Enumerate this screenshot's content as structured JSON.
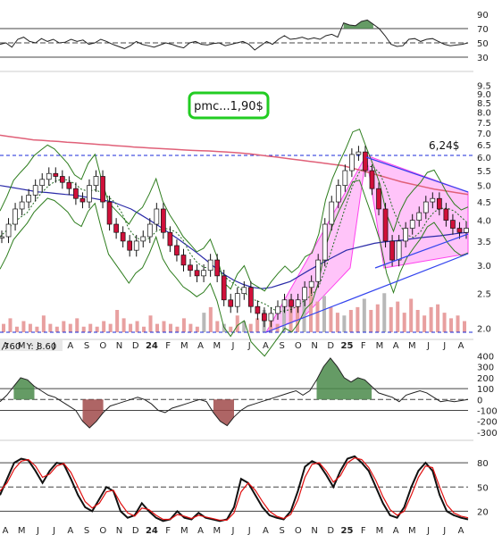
{
  "colors": {
    "up": "#ffffff",
    "down": "#d0103a",
    "wick": "#111111",
    "ma_red": "#e06078",
    "ma_blue": "#2a2aa8",
    "bollinger": "#2e7d1e",
    "ma_dotted": "#1f6b1f",
    "volume": "#e8a0a0",
    "volume_up": "#b8b8b8",
    "pink": "#ff55ee",
    "trend_blue": "#3344ee",
    "dashed_blue": "#1a2ad8",
    "osc_fill_pos": "#4a8a4a",
    "osc_fill_neg": "#a04a4a",
    "label_box_border": "#22cc22"
  },
  "annotation_box": {
    "text": "pmc...1,90$"
  },
  "resistance_label": {
    "text": "6,24$"
  },
  "cursor_readout": {
    "text": ",760  Y: 8.60"
  },
  "x_axis_labels": [
    {
      "text": "A",
      "bold": false
    },
    {
      "text": "M",
      "bold": false
    },
    {
      "text": "J",
      "bold": false
    },
    {
      "text": "J",
      "bold": false
    },
    {
      "text": "A",
      "bold": false
    },
    {
      "text": "S",
      "bold": false
    },
    {
      "text": "O",
      "bold": false
    },
    {
      "text": "N",
      "bold": false
    },
    {
      "text": "D",
      "bold": false
    },
    {
      "text": "24",
      "bold": true
    },
    {
      "text": "F",
      "bold": false
    },
    {
      "text": "M",
      "bold": false
    },
    {
      "text": "A",
      "bold": false
    },
    {
      "text": "M",
      "bold": false
    },
    {
      "text": "J",
      "bold": false
    },
    {
      "text": "J",
      "bold": false
    },
    {
      "text": "A",
      "bold": false
    },
    {
      "text": "S",
      "bold": false
    },
    {
      "text": "O",
      "bold": false
    },
    {
      "text": "N",
      "bold": false
    },
    {
      "text": "D",
      "bold": false
    },
    {
      "text": "25",
      "bold": true
    },
    {
      "text": "F",
      "bold": false
    },
    {
      "text": "M",
      "bold": false
    },
    {
      "text": "A",
      "bold": false
    },
    {
      "text": "M",
      "bold": false
    },
    {
      "text": "J",
      "bold": false
    },
    {
      "text": "J",
      "bold": false
    },
    {
      "text": "A",
      "bold": false
    }
  ],
  "chart_data": [
    {
      "type": "line",
      "panel": "rsi",
      "y_ticks": [
        "90",
        "70",
        "50",
        "30"
      ],
      "ylim": [
        10,
        100
      ],
      "reference_lines": [
        70,
        50,
        30
      ],
      "series": [
        {
          "values": [
            48,
            50,
            44,
            55,
            58,
            52,
            50,
            56,
            52,
            55,
            50,
            51,
            55,
            52,
            54,
            48,
            50,
            55,
            52,
            48,
            45,
            42,
            46,
            52,
            48,
            46,
            44,
            47,
            50,
            48,
            45,
            43,
            50,
            52,
            48,
            47,
            49,
            50,
            46,
            48,
            50,
            52,
            48,
            40,
            46,
            52,
            48,
            55,
            60,
            55,
            56,
            58,
            55,
            57,
            55,
            60,
            62,
            58,
            78,
            75,
            74,
            80,
            82,
            76,
            70,
            60,
            48,
            45,
            46,
            55,
            56,
            52,
            55,
            56,
            52,
            48,
            46,
            47,
            48,
            50
          ]
        }
      ]
    },
    {
      "type": "line",
      "panel": "price",
      "y_ticks": [
        "9.5",
        "9.0",
        "8.5",
        "8.0",
        "7.5",
        "7.0",
        "6.5",
        "6.0",
        "5.5",
        "5.0",
        "4.5",
        "4.0",
        "3.5",
        "3.0",
        "2.5",
        "2.0"
      ],
      "ylim": [
        1.95,
        9.7
      ],
      "reference_lines": [
        6.24,
        2.0
      ],
      "series": [
        {
          "values": [
            3.6,
            3.9,
            4.3,
            4.5,
            4.7,
            5.0,
            5.2,
            5.4,
            5.3,
            5.1,
            4.9,
            4.6,
            4.5,
            5.0,
            5.3,
            4.5,
            3.9,
            3.7,
            3.5,
            3.3,
            3.5,
            3.6,
            3.9,
            4.3,
            3.7,
            3.4,
            3.2,
            3.0,
            2.9,
            2.8,
            2.9,
            3.1,
            2.8,
            2.4,
            2.3,
            2.5,
            2.6,
            2.3,
            2.2,
            2.1,
            2.2,
            2.3,
            2.4,
            2.3,
            2.4,
            2.6,
            2.7,
            3.1,
            3.9,
            4.5,
            5.0,
            5.5,
            6.1,
            6.2,
            5.5,
            4.9,
            4.3,
            3.5,
            3.1,
            3.5,
            3.8,
            4.0,
            4.2,
            4.5,
            4.6,
            4.3,
            4.0,
            3.8,
            3.7,
            3.8
          ]
        },
        {
          "values": [
            6.9,
            6.85,
            6.8,
            6.75,
            6.7,
            6.68,
            6.65,
            6.63,
            6.6,
            6.58,
            6.55,
            6.53,
            6.5,
            6.48,
            6.45,
            6.43,
            6.4,
            6.38,
            6.36,
            6.34,
            6.32,
            6.3,
            6.28,
            6.26,
            6.25,
            6.24,
            6.22,
            6.2,
            6.18,
            6.15,
            6.12,
            6.08,
            6.04,
            6.0,
            5.96,
            5.92,
            5.88,
            5.84,
            5.8,
            5.76,
            5.72,
            5.68,
            5.6,
            5.52,
            5.44,
            5.36,
            5.28,
            5.2,
            5.12,
            5.06,
            5.0,
            4.94,
            4.88,
            4.84,
            4.8,
            4.76,
            4.72
          ]
        },
        {
          "values": [
            5.0,
            4.95,
            4.9,
            4.85,
            4.8,
            4.78,
            4.75,
            4.72,
            4.7,
            4.65,
            4.6,
            4.55,
            4.5,
            4.4,
            4.3,
            4.15,
            4.0,
            3.85,
            3.7,
            3.55,
            3.4,
            3.25,
            3.1,
            2.95,
            2.82,
            2.72,
            2.65,
            2.6,
            2.58,
            2.6,
            2.65,
            2.7,
            2.8,
            2.9,
            3.0,
            3.1,
            3.2,
            3.3,
            3.35,
            3.4,
            3.45,
            3.48,
            3.5,
            3.52,
            3.55,
            3.58,
            3.6,
            3.62,
            3.65,
            3.68,
            3.7
          ]
        }
      ]
    },
    {
      "type": "bar",
      "panel": "volume",
      "values": [
        3,
        5,
        2,
        4,
        3,
        2,
        6,
        3,
        2,
        4,
        3,
        5,
        2,
        3,
        2,
        4,
        3,
        8,
        5,
        3,
        4,
        2,
        6,
        3,
        4,
        3,
        2,
        5,
        3,
        2,
        7,
        9,
        4,
        3,
        2,
        6,
        4,
        3,
        5,
        8,
        4,
        3,
        9,
        12,
        10,
        14,
        16,
        11,
        13,
        9,
        7,
        6,
        8,
        9,
        12,
        8,
        10,
        14,
        9,
        11,
        7,
        12,
        8,
        6,
        9,
        10,
        7,
        5,
        6,
        4
      ]
    },
    {
      "type": "area",
      "panel": "oscillator",
      "y_ticks": [
        "400",
        "300",
        "200",
        "100",
        "0",
        "-100",
        "-200",
        "-300"
      ],
      "ylim": [
        -350,
        420
      ],
      "reference_lines": [
        100,
        0,
        -100
      ],
      "series": [
        {
          "values": [
            -20,
            40,
            120,
            200,
            180,
            120,
            80,
            40,
            20,
            -20,
            -60,
            -100,
            -200,
            -260,
            -200,
            -120,
            -60,
            -40,
            -20,
            0,
            20,
            0,
            -40,
            -100,
            -120,
            -80,
            -60,
            -40,
            -20,
            0,
            -20,
            -120,
            -200,
            -240,
            -160,
            -100,
            -60,
            -40,
            -20,
            0,
            20,
            40,
            60,
            80,
            40,
            80,
            180,
            300,
            380,
            300,
            200,
            160,
            200,
            180,
            120,
            60,
            40,
            20,
            -20,
            40,
            60,
            80,
            60,
            20,
            -20,
            -10,
            -20,
            -10,
            0
          ]
        }
      ]
    },
    {
      "type": "line",
      "panel": "stochastic",
      "y_ticks": [
        "80",
        "50",
        "20"
      ],
      "ylim": [
        5,
        100
      ],
      "reference_lines": [
        80,
        50,
        20
      ],
      "series": [
        {
          "values": [
            40,
            60,
            80,
            85,
            83,
            70,
            55,
            70,
            80,
            78,
            60,
            40,
            25,
            20,
            35,
            50,
            45,
            20,
            12,
            15,
            30,
            20,
            12,
            8,
            10,
            20,
            12,
            10,
            18,
            12,
            10,
            8,
            10,
            25,
            60,
            55,
            40,
            25,
            15,
            12,
            10,
            20,
            45,
            75,
            82,
            78,
            65,
            50,
            70,
            85,
            88,
            80,
            70,
            50,
            30,
            15,
            12,
            25,
            50,
            70,
            80,
            70,
            40,
            20,
            15,
            12,
            10
          ]
        },
        {
          "values": [
            45,
            55,
            72,
            82,
            84,
            76,
            62,
            66,
            76,
            79,
            68,
            50,
            32,
            24,
            30,
            44,
            46,
            30,
            18,
            14,
            24,
            22,
            15,
            10,
            10,
            16,
            14,
            11,
            15,
            13,
            11,
            9,
            9,
            18,
            44,
            55,
            46,
            32,
            20,
            14,
            11,
            16,
            34,
            62,
            78,
            80,
            70,
            56,
            64,
            80,
            86,
            84,
            74,
            58,
            38,
            22,
            15,
            20,
            40,
            62,
            76,
            74,
            50,
            28,
            18,
            14,
            12
          ]
        }
      ]
    }
  ]
}
